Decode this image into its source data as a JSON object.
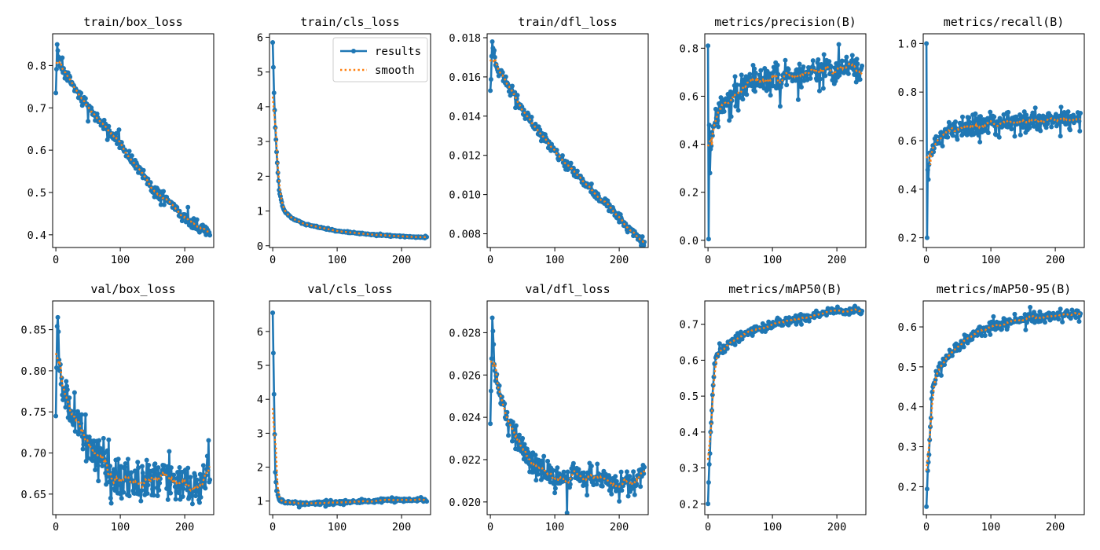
{
  "figure": {
    "colors": {
      "results": "#1f77b4",
      "smooth": "#ff7f0e",
      "axes": "#000000",
      "legend_border": "#cccccc"
    },
    "legend": {
      "entries": [
        "results",
        "smooth"
      ],
      "placement": "upper-right",
      "panel": "train/cls_loss"
    }
  },
  "chart_data": [
    {
      "type": "line",
      "title": "train/box_loss",
      "epochs": 240,
      "xlim": [
        -5,
        245
      ],
      "ylim": [
        0.37,
        0.875
      ],
      "xticks": [
        0,
        100,
        200
      ],
      "xtick_labels": [
        "0",
        "100",
        "200"
      ],
      "yticks": [
        0.4,
        0.5,
        0.6,
        0.7,
        0.8
      ],
      "ytick_labels": [
        "0.4",
        "0.5",
        "0.6",
        "0.7",
        "0.8"
      ],
      "trend": {
        "points": [
          [
            0,
            0.735
          ],
          [
            2,
            0.85
          ],
          [
            6,
            0.8
          ],
          [
            20,
            0.77
          ],
          [
            50,
            0.7
          ],
          [
            100,
            0.615
          ],
          [
            150,
            0.51
          ],
          [
            200,
            0.44
          ],
          [
            239,
            0.4
          ]
        ],
        "noise": 0.012
      },
      "series": [
        {
          "name": "results",
          "style": "line-marker"
        },
        {
          "name": "smooth",
          "style": "dotted"
        }
      ]
    },
    {
      "type": "line",
      "title": "train/cls_loss",
      "epochs": 240,
      "xlim": [
        -5,
        245
      ],
      "ylim": [
        -0.05,
        6.1
      ],
      "xticks": [
        0,
        100,
        200
      ],
      "xtick_labels": [
        "0",
        "100",
        "200"
      ],
      "yticks": [
        0,
        1,
        2,
        3,
        4,
        5,
        6
      ],
      "ytick_labels": [
        "0",
        "1",
        "2",
        "3",
        "4",
        "5",
        "6"
      ],
      "trend": {
        "points": [
          [
            0,
            5.85
          ],
          [
            2,
            4.4
          ],
          [
            4,
            3.4
          ],
          [
            6,
            2.7
          ],
          [
            8,
            2.1
          ],
          [
            10,
            1.6
          ],
          [
            15,
            1.15
          ],
          [
            20,
            0.95
          ],
          [
            30,
            0.8
          ],
          [
            50,
            0.62
          ],
          [
            100,
            0.42
          ],
          [
            150,
            0.33
          ],
          [
            200,
            0.27
          ],
          [
            239,
            0.24
          ]
        ],
        "noise": 0.02
      },
      "series": [
        {
          "name": "results",
          "style": "line-marker"
        },
        {
          "name": "smooth",
          "style": "dotted"
        }
      ]
    },
    {
      "type": "line",
      "title": "train/dfl_loss",
      "epochs": 240,
      "xlim": [
        -5,
        245
      ],
      "ylim": [
        0.0073,
        0.0182
      ],
      "xticks": [
        0,
        100,
        200
      ],
      "xtick_labels": [
        "0",
        "100",
        "200"
      ],
      "yticks": [
        0.008,
        0.01,
        0.012,
        0.014,
        0.016,
        0.018
      ],
      "ytick_labels": [
        "0.008",
        "0.010",
        "0.012",
        "0.014",
        "0.016",
        "0.018"
      ],
      "trend": {
        "points": [
          [
            0,
            0.0153
          ],
          [
            3,
            0.0178
          ],
          [
            8,
            0.0166
          ],
          [
            20,
            0.016
          ],
          [
            50,
            0.0143
          ],
          [
            100,
            0.0122
          ],
          [
            150,
            0.0105
          ],
          [
            200,
            0.0088
          ],
          [
            239,
            0.0075
          ]
        ],
        "noise": 0.00025
      },
      "series": [
        {
          "name": "results",
          "style": "line-marker"
        },
        {
          "name": "smooth",
          "style": "dotted"
        }
      ]
    },
    {
      "type": "line",
      "title": "metrics/precision(B)",
      "epochs": 240,
      "xlim": [
        -5,
        245
      ],
      "ylim": [
        -0.03,
        0.86
      ],
      "xticks": [
        0,
        100,
        200
      ],
      "xtick_labels": [
        "0",
        "100",
        "200"
      ],
      "yticks": [
        0,
        0.2,
        0.4,
        0.6,
        0.8
      ],
      "ytick_labels": [
        "0.0",
        "0.2",
        "0.4",
        "0.6",
        "0.8"
      ],
      "trend": {
        "points": [
          [
            0,
            0.81
          ],
          [
            1,
            0.005
          ],
          [
            2,
            0.48
          ],
          [
            3,
            0.28
          ],
          [
            4,
            0.38
          ],
          [
            6,
            0.45
          ],
          [
            10,
            0.48
          ],
          [
            20,
            0.55
          ],
          [
            40,
            0.6
          ],
          [
            60,
            0.65
          ],
          [
            100,
            0.68
          ],
          [
            150,
            0.7
          ],
          [
            200,
            0.72
          ],
          [
            239,
            0.71
          ]
        ],
        "noise": 0.05
      },
      "series": [
        {
          "name": "results",
          "style": "line-marker"
        },
        {
          "name": "smooth",
          "style": "dotted"
        }
      ]
    },
    {
      "type": "line",
      "title": "metrics/recall(B)",
      "epochs": 240,
      "xlim": [
        -5,
        245
      ],
      "ylim": [
        0.16,
        1.04
      ],
      "xticks": [
        0,
        100,
        200
      ],
      "xtick_labels": [
        "0",
        "100",
        "200"
      ],
      "yticks": [
        0.2,
        0.4,
        0.6,
        0.8,
        1.0
      ],
      "ytick_labels": [
        "0.2",
        "0.4",
        "0.6",
        "0.8",
        "1.0"
      ],
      "trend": {
        "points": [
          [
            0,
            1.0
          ],
          [
            1,
            0.2
          ],
          [
            2,
            0.48
          ],
          [
            3,
            0.44
          ],
          [
            5,
            0.55
          ],
          [
            10,
            0.58
          ],
          [
            30,
            0.64
          ],
          [
            60,
            0.66
          ],
          [
            100,
            0.67
          ],
          [
            150,
            0.68
          ],
          [
            200,
            0.69
          ],
          [
            239,
            0.68
          ]
        ],
        "noise": 0.04
      },
      "series": [
        {
          "name": "results",
          "style": "line-marker"
        },
        {
          "name": "smooth",
          "style": "dotted"
        }
      ]
    },
    {
      "type": "line",
      "title": "val/box_loss",
      "epochs": 240,
      "xlim": [
        -5,
        245
      ],
      "ylim": [
        0.625,
        0.885
      ],
      "xticks": [
        0,
        100,
        200
      ],
      "xtick_labels": [
        "0",
        "100",
        "200"
      ],
      "yticks": [
        0.65,
        0.7,
        0.75,
        0.8,
        0.85
      ],
      "ytick_labels": [
        "0.65",
        "0.70",
        "0.75",
        "0.80",
        "0.85"
      ],
      "trend": {
        "points": [
          [
            0,
            0.745
          ],
          [
            3,
            0.865
          ],
          [
            6,
            0.8
          ],
          [
            15,
            0.77
          ],
          [
            30,
            0.74
          ],
          [
            60,
            0.7
          ],
          [
            100,
            0.665
          ],
          [
            150,
            0.672
          ],
          [
            200,
            0.665
          ],
          [
            230,
            0.66
          ],
          [
            239,
            0.695
          ]
        ],
        "noise": 0.025
      },
      "series": [
        {
          "name": "results",
          "style": "line-marker"
        },
        {
          "name": "smooth",
          "style": "dotted"
        }
      ]
    },
    {
      "type": "line",
      "title": "val/cls_loss",
      "epochs": 240,
      "xlim": [
        -5,
        245
      ],
      "ylim": [
        0.6,
        6.9
      ],
      "xticks": [
        0,
        100,
        200
      ],
      "xtick_labels": [
        "0",
        "100",
        "200"
      ],
      "yticks": [
        1,
        2,
        3,
        4,
        5,
        6
      ],
      "ytick_labels": [
        "1",
        "2",
        "3",
        "4",
        "5",
        "6"
      ],
      "trend": {
        "points": [
          [
            0,
            6.55
          ],
          [
            2,
            4.15
          ],
          [
            4,
            1.85
          ],
          [
            6,
            1.3
          ],
          [
            10,
            1.05
          ],
          [
            20,
            0.95
          ],
          [
            50,
            0.93
          ],
          [
            100,
            0.95
          ],
          [
            150,
            1.0
          ],
          [
            200,
            1.05
          ],
          [
            239,
            1.02
          ]
        ],
        "noise": 0.05
      },
      "series": [
        {
          "name": "results",
          "style": "line-marker"
        },
        {
          "name": "smooth",
          "style": "dotted"
        }
      ]
    },
    {
      "type": "line",
      "title": "val/dfl_loss",
      "epochs": 240,
      "xlim": [
        -5,
        245
      ],
      "ylim": [
        0.0194,
        0.0295
      ],
      "xticks": [
        0,
        100,
        200
      ],
      "xtick_labels": [
        "0",
        "100",
        "200"
      ],
      "yticks": [
        0.02,
        0.022,
        0.024,
        0.026,
        0.028
      ],
      "ytick_labels": [
        "0.020",
        "0.022",
        "0.024",
        "0.026",
        "0.028"
      ],
      "trend": {
        "points": [
          [
            0,
            0.0237
          ],
          [
            3,
            0.0287
          ],
          [
            6,
            0.0265
          ],
          [
            15,
            0.025
          ],
          [
            30,
            0.0237
          ],
          [
            60,
            0.022
          ],
          [
            100,
            0.0211
          ],
          [
            150,
            0.0212
          ],
          [
            200,
            0.0209
          ],
          [
            230,
            0.0208
          ],
          [
            239,
            0.0219
          ]
        ],
        "noise": 0.0006
      },
      "series": [
        {
          "name": "results",
          "style": "line-marker"
        },
        {
          "name": "smooth",
          "style": "dotted"
        }
      ]
    },
    {
      "type": "line",
      "title": "metrics/mAP50(B)",
      "epochs": 240,
      "xlim": [
        -5,
        245
      ],
      "ylim": [
        0.17,
        0.765
      ],
      "xticks": [
        0,
        100,
        200
      ],
      "xtick_labels": [
        "0",
        "100",
        "200"
      ],
      "yticks": [
        0.2,
        0.3,
        0.4,
        0.5,
        0.6,
        0.7
      ],
      "ytick_labels": [
        "0.2",
        "0.3",
        "0.4",
        "0.5",
        "0.6",
        "0.7"
      ],
      "trend": {
        "points": [
          [
            0,
            0.2
          ],
          [
            2,
            0.31
          ],
          [
            4,
            0.4
          ],
          [
            6,
            0.46
          ],
          [
            8,
            0.53
          ],
          [
            10,
            0.59
          ],
          [
            15,
            0.62
          ],
          [
            30,
            0.64
          ],
          [
            60,
            0.68
          ],
          [
            100,
            0.7
          ],
          [
            150,
            0.72
          ],
          [
            200,
            0.735
          ],
          [
            239,
            0.74
          ]
        ],
        "noise": 0.012
      },
      "series": [
        {
          "name": "results",
          "style": "line-marker"
        },
        {
          "name": "smooth",
          "style": "dotted"
        }
      ]
    },
    {
      "type": "line",
      "title": "metrics/mAP50-95(B)",
      "epochs": 240,
      "xlim": [
        -5,
        245
      ],
      "ylim": [
        0.13,
        0.665
      ],
      "xticks": [
        0,
        100,
        200
      ],
      "xtick_labels": [
        "0",
        "100",
        "200"
      ],
      "yticks": [
        0.2,
        0.3,
        0.4,
        0.5,
        0.6
      ],
      "ytick_labels": [
        "0.2",
        "0.3",
        "0.4",
        "0.5",
        "0.6"
      ],
      "trend": {
        "points": [
          [
            0,
            0.15
          ],
          [
            2,
            0.24
          ],
          [
            4,
            0.28
          ],
          [
            6,
            0.35
          ],
          [
            8,
            0.42
          ],
          [
            10,
            0.45
          ],
          [
            15,
            0.48
          ],
          [
            30,
            0.52
          ],
          [
            60,
            0.57
          ],
          [
            100,
            0.6
          ],
          [
            150,
            0.62
          ],
          [
            200,
            0.63
          ],
          [
            239,
            0.632
          ]
        ],
        "noise": 0.012
      },
      "series": [
        {
          "name": "results",
          "style": "line-marker"
        },
        {
          "name": "smooth",
          "style": "dotted"
        }
      ]
    }
  ]
}
